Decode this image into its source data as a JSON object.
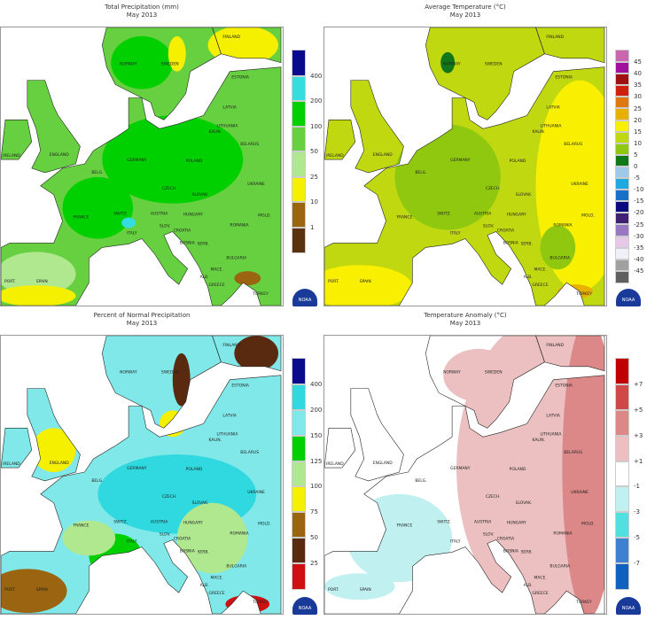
{
  "subtitle": "May 2013",
  "logo_text": "NOAA",
  "map_labels": [
    "NORWAY",
    "SWEDEN",
    "FINLAND",
    "ESTONIA",
    "LATVIA",
    "LITHUANIA",
    "KALIN.",
    "BELARUS",
    "POLAND",
    "GERMANY",
    "ENGLAND",
    "IRELAND",
    "BELG.",
    "FRANCE",
    "SWITZ.",
    "AUSTRIA",
    "CZECH.",
    "SLOVAK.",
    "HUNGARY",
    "ROMANIA",
    "UKRAINE",
    "MOLD.",
    "ITALY",
    "SLOV.",
    "CROATIA",
    "BOSNIA",
    "SERB.",
    "BULGARIA",
    "MACE.",
    "ALB.",
    "GREECE",
    "TURKEY",
    "SPAIN",
    "PORT."
  ],
  "panels": [
    {
      "title": "Total Precipitation (mm)",
      "legend_colors": [
        "#0a0a8c",
        "#33dde0",
        "#00d000",
        "#66d040",
        "#b0e890",
        "#f5ef00",
        "#9b6410",
        "#5a3210"
      ],
      "legend_labels": [
        "400",
        "200",
        "100",
        "50",
        "25",
        "10",
        "1"
      ]
    },
    {
      "title": "Average Temperature (°C)",
      "legend_colors": [
        "#c866b0",
        "#a0109c",
        "#a01010",
        "#d02010",
        "#e07810",
        "#e8b000",
        "#f8f000",
        "#c0d810",
        "#90c810",
        "#107818",
        "#a0c8e8",
        "#20a8e0",
        "#1870c8",
        "#0a0a80",
        "#402070",
        "#9878c0",
        "#e8c8e8",
        "#f0f0f8",
        "#a0a0a0",
        "#606060"
      ],
      "legend_labels": [
        "45",
        "40",
        "35",
        "30",
        "25",
        "20",
        "15",
        "10",
        "5",
        "0",
        "-5",
        "-10",
        "-15",
        "-20",
        "-25",
        "-30",
        "-35",
        "-40",
        "-45"
      ]
    },
    {
      "title": "Percent of Normal Precipitation",
      "legend_colors": [
        "#0a0a8c",
        "#30d8e0",
        "#80e8e8",
        "#00d000",
        "#b0e890",
        "#f5ef00",
        "#9b6410",
        "#5a2a10",
        "#d01010"
      ],
      "legend_labels": [
        "400",
        "200",
        "150",
        "125",
        "100",
        "75",
        "50",
        "25"
      ]
    },
    {
      "title": "Temperature Anomaly (°C)",
      "legend_colors": [
        "#c00000",
        "#d04848",
        "#dc8888",
        "#ecc0c0",
        "#ffffff",
        "#c0f0f0",
        "#50e0e0",
        "#4080d0",
        "#1060c0"
      ],
      "legend_labels": [
        "+7",
        "+5",
        "+3",
        "+1",
        "-1",
        "-3",
        "-5",
        "-7"
      ]
    }
  ]
}
